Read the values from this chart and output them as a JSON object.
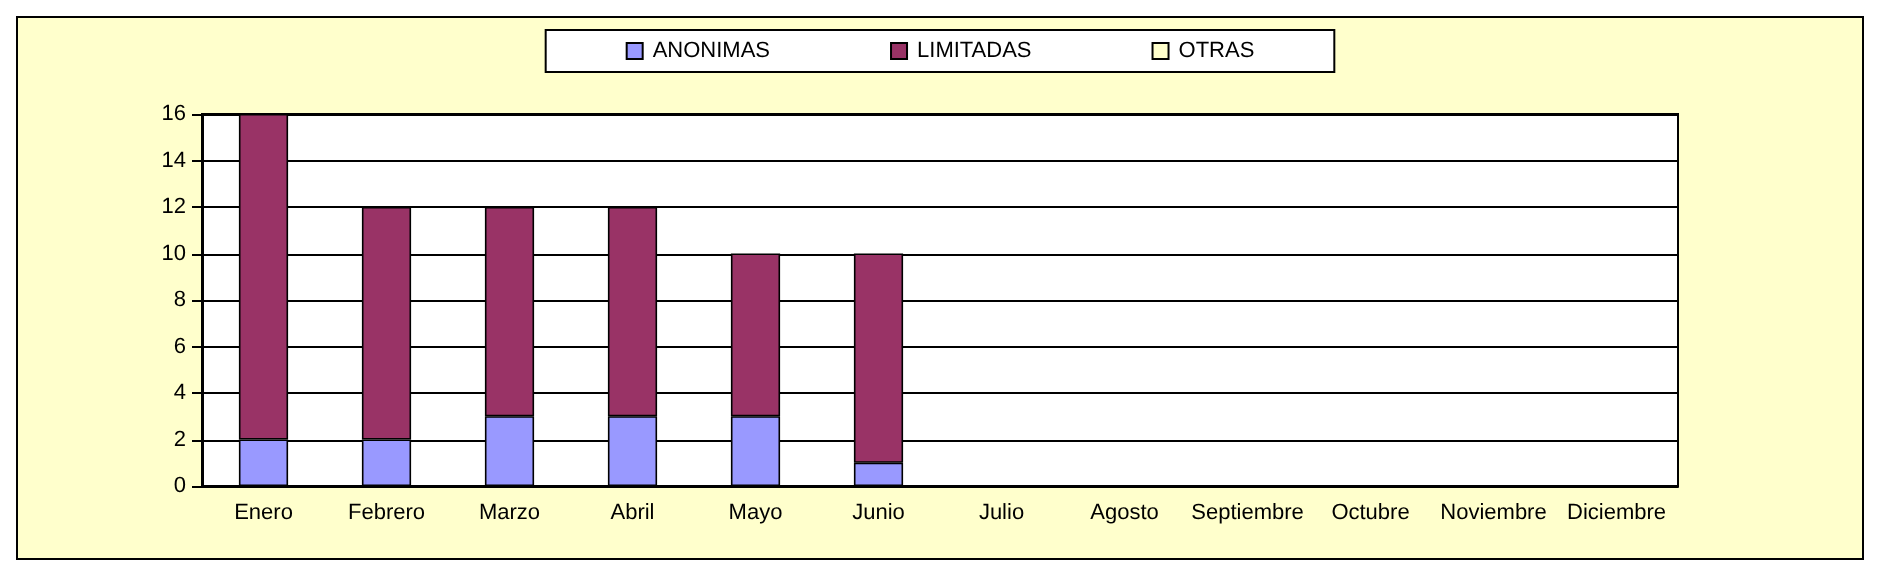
{
  "chart_data": {
    "type": "bar",
    "stacked": true,
    "categories": [
      "Enero",
      "Febrero",
      "Marzo",
      "Abril",
      "Mayo",
      "Junio",
      "Julio",
      "Agosto",
      "Septiembre",
      "Octubre",
      "Noviembre",
      "Diciembre"
    ],
    "series": [
      {
        "name": "ANONIMAS",
        "color": "#9999ff",
        "values": [
          2,
          2,
          3,
          3,
          3,
          1,
          0,
          0,
          0,
          0,
          0,
          0
        ]
      },
      {
        "name": "LIMITADAS",
        "color": "#993366",
        "values": [
          14,
          10,
          9,
          9,
          7,
          9,
          0,
          0,
          0,
          0,
          0,
          0
        ]
      },
      {
        "name": "OTRAS",
        "color": "#ffffcc",
        "values": [
          0,
          0,
          0,
          0,
          0,
          0,
          0,
          0,
          0,
          0,
          0,
          0
        ]
      }
    ],
    "ylim": [
      0,
      16
    ],
    "yticks": [
      0,
      2,
      4,
      6,
      8,
      10,
      12,
      14,
      16
    ],
    "grid": "y",
    "legend": "top"
  }
}
